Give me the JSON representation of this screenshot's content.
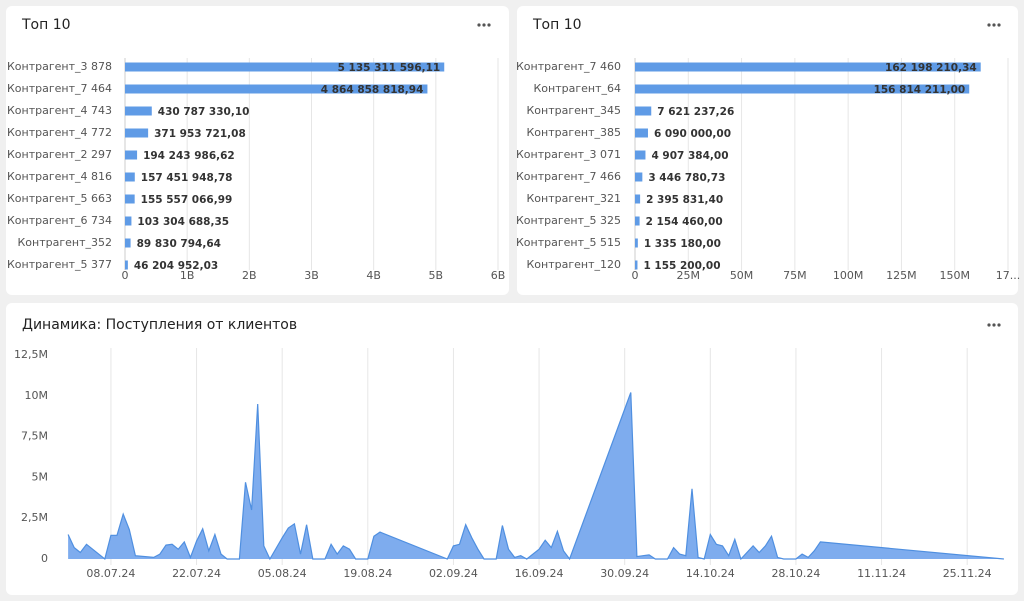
{
  "chart_data": [
    {
      "type": "barh",
      "title": "Топ 10",
      "color": "#5f9be6",
      "categories": [
        "Контрагент_3 878",
        "Контрагент_7 464",
        "Контрагент_4 743",
        "Контрагент_4 772",
        "Контрагент_2 297",
        "Контрагент_4 816",
        "Контрагент_5 663",
        "Контрагент_6 734",
        "Контрагент_352",
        "Контрагент_5 377"
      ],
      "values": [
        5135311596.11,
        4864858818.94,
        430787330.1,
        371953721.08,
        194243986.62,
        157451948.78,
        155557066.99,
        103304688.35,
        89830794.64,
        46204952.03
      ],
      "value_labels": [
        "5 135 311 596,11",
        "4 864 858 818,94",
        "430 787 330,10",
        "371 953 721,08",
        "194 243 986,62",
        "157 451 948,78",
        "155 557 066,99",
        "103 304 688,35",
        "89 830 794,64",
        "46 204 952,03"
      ],
      "xlim": [
        0,
        6000000000
      ],
      "xticks": [
        0,
        {
          "value": 1000000000,
          "label": "1B"
        },
        {
          "value": 2000000000,
          "label": "2B"
        },
        {
          "value": 3000000000,
          "label": "3B"
        },
        {
          "value": 4000000000,
          "label": "4B"
        },
        {
          "value": 5000000000,
          "label": "5B"
        },
        {
          "value": 6000000000,
          "label": "6B"
        }
      ],
      "grid": true
    },
    {
      "type": "barh",
      "title": "Топ 10",
      "color": "#5f9be6",
      "categories": [
        "Контрагент_7 460",
        "Контрагент_64",
        "Контрагент_345",
        "Контрагент_385",
        "Контрагент_3 071",
        "Контрагент_7 466",
        "Контрагент_321",
        "Контрагент_5 325",
        "Контрагент_5 515",
        "Контрагент_120"
      ],
      "values": [
        162198210.34,
        156814211,
        7621237.26,
        6090000,
        4907384,
        3446780.73,
        2395831.4,
        2154460,
        1335180,
        1155200
      ],
      "value_labels": [
        "162 198 210,34",
        "156 814 211,00",
        "7 621 237,26",
        "6 090 000,00",
        "4 907 384,00",
        "3 446 780,73",
        "2 395 831,40",
        "2 154 460,00",
        "1 335 180,00",
        "1 155 200,00"
      ],
      "xlim": [
        0,
        175000000
      ],
      "xticks": [
        0,
        {
          "value": 25000000,
          "label": "25M"
        },
        {
          "value": 50000000,
          "label": "50M"
        },
        {
          "value": 75000000,
          "label": "75M"
        },
        {
          "value": 100000000,
          "label": "100M"
        },
        {
          "value": 125000000,
          "label": "125M"
        },
        {
          "value": 150000000,
          "label": "150M"
        },
        {
          "value": 175000000,
          "label": "17..."
        }
      ],
      "grid": true
    },
    {
      "type": "area",
      "title": "Динамика: Поступления от клиентов",
      "color": "#7eacee",
      "line_color": "#4f8fe0",
      "x": [
        "01.07.24",
        "02.07.24",
        "03.07.24",
        "04.07.24",
        "05.07.24",
        "07.07.24",
        "08.07.24",
        "09.07.24",
        "10.07.24",
        "11.07.24",
        "12.07.24",
        "15.07.24",
        "16.07.24",
        "17.07.24",
        "18.07.24",
        "19.07.24",
        "20.07.24",
        "21.07.24",
        "22.07.24",
        "23.07.24",
        "24.07.24",
        "25.07.24",
        "26.07.24",
        "27.07.24",
        "29.07.24",
        "30.07.24",
        "31.07.24",
        "01.08.24",
        "02.08.24",
        "03.08.24",
        "05.08.24",
        "06.08.24",
        "07.08.24",
        "08.08.24",
        "09.08.24",
        "10.08.24",
        "12.08.24",
        "13.08.24",
        "14.08.24",
        "15.08.24",
        "16.08.24",
        "17.08.24",
        "19.08.24",
        "20.08.24",
        "21.08.24",
        "01.09.24",
        "02.09.24",
        "03.09.24",
        "04.09.24",
        "05.09.24",
        "06.09.24",
        "07.09.24",
        "09.09.24",
        "10.09.24",
        "11.09.24",
        "12.09.24",
        "13.09.24",
        "14.09.24",
        "16.09.24",
        "17.09.24",
        "18.09.24",
        "19.09.24",
        "20.09.24",
        "21.09.24",
        "01.10.24",
        "02.10.24",
        "03.10.24",
        "04.10.24",
        "05.10.24",
        "07.10.24",
        "08.10.24",
        "09.10.24",
        "10.10.24",
        "11.10.24",
        "12.10.24",
        "13.10.24",
        "14.10.24",
        "15.10.24",
        "16.10.24",
        "17.10.24",
        "18.10.24",
        "19.10.24",
        "21.10.24",
        "22.10.24",
        "23.10.24",
        "24.10.24",
        "25.10.24",
        "26.10.24",
        "28.10.24",
        "29.10.24",
        "30.10.24",
        "31.10.24",
        "01.11.24",
        "01.12.24"
      ],
      "values": [
        1500000,
        700000,
        400000,
        900000,
        600000,
        0,
        1450000,
        1450000,
        2750000,
        1800000,
        200000,
        100000,
        300000,
        850000,
        900000,
        600000,
        1050000,
        100000,
        1100000,
        1850000,
        500000,
        1500000,
        300000,
        0,
        0,
        4700000,
        3000000,
        9500000,
        800000,
        0,
        1300000,
        1900000,
        2150000,
        300000,
        2100000,
        0,
        0,
        900000,
        300000,
        800000,
        600000,
        0,
        0,
        1400000,
        1650000,
        0,
        800000,
        900000,
        2100000,
        1300000,
        600000,
        0,
        0,
        2050000,
        600000,
        100000,
        200000,
        0,
        600000,
        1150000,
        700000,
        1700000,
        500000,
        0,
        10200000,
        150000,
        200000,
        250000,
        0,
        0,
        700000,
        300000,
        200000,
        4300000,
        100000,
        0,
        1500000,
        900000,
        800000,
        200000,
        1200000,
        0,
        800000,
        400000,
        800000,
        1400000,
        100000,
        0,
        0,
        300000,
        100000,
        500000,
        1050000,
        0
      ],
      "xlim": [
        "30.06.24",
        "02.12.24"
      ],
      "xticks": [
        "08.07.24",
        "22.07.24",
        "05.08.24",
        "19.08.24",
        "02.09.24",
        "16.09.24",
        "30.09.24",
        "14.10.24",
        "28.10.24",
        "11.11.24",
        "25.11.24"
      ],
      "ylim": [
        0,
        12500000
      ],
      "yticks": [
        0,
        {
          "value": 2500000,
          "label": "2,5M"
        },
        {
          "value": 5000000,
          "label": "5M"
        },
        {
          "value": 7500000,
          "label": "7,5M"
        },
        {
          "value": 10000000,
          "label": "10M"
        },
        {
          "value": 12500000,
          "label": "12,5M"
        }
      ],
      "grid": true
    }
  ]
}
